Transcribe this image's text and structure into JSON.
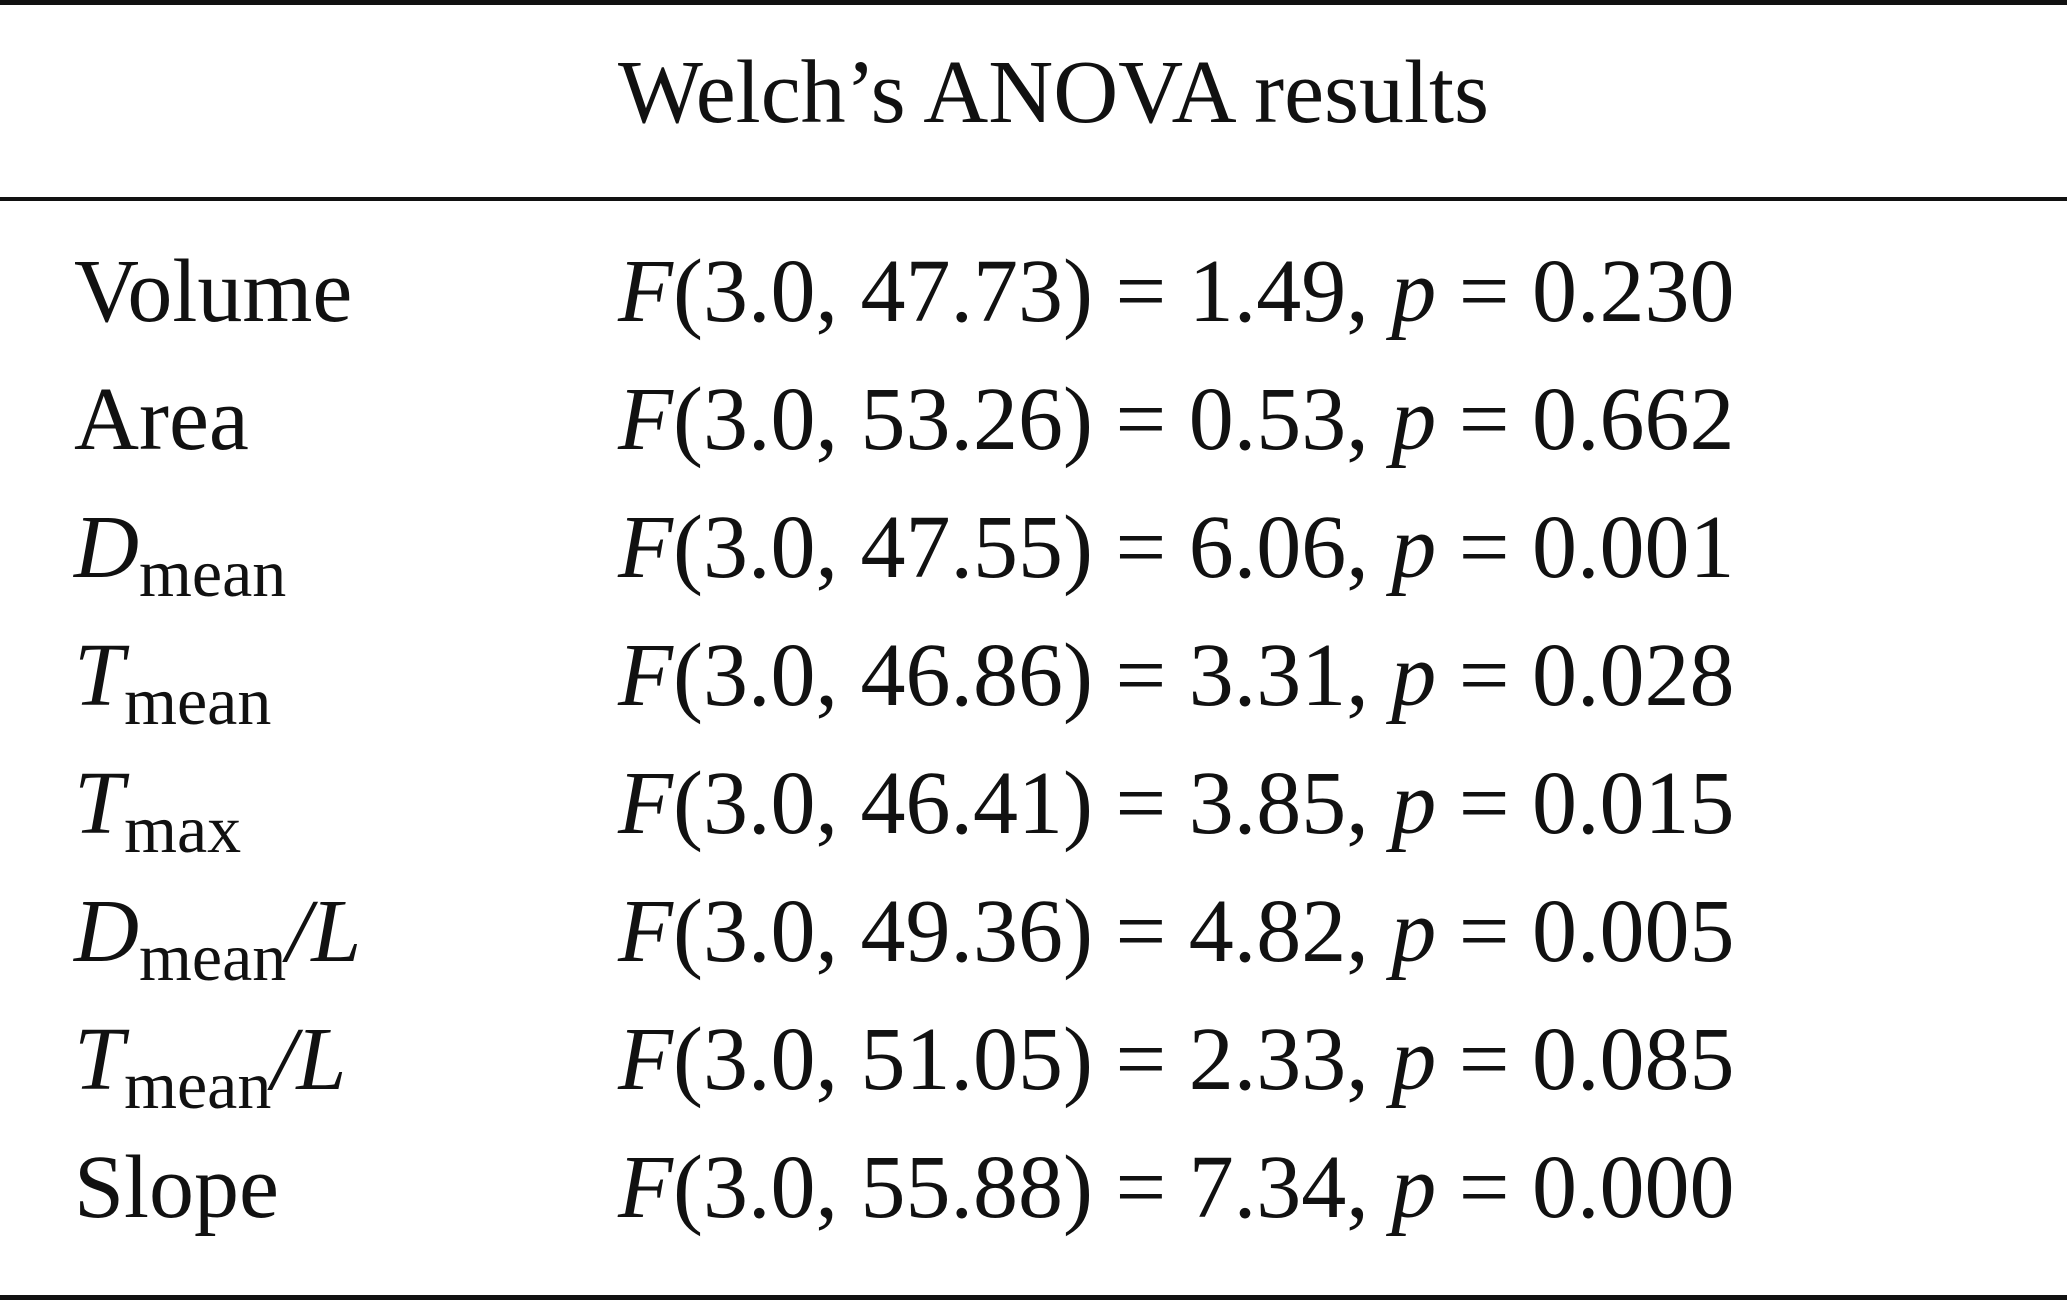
{
  "table": {
    "title": "Welch’s ANOVA results",
    "rows": [
      {
        "var_main": "Volume",
        "var_sub": "",
        "var_suffix": "",
        "var_italic": false,
        "f_symbol": "F",
        "args": "(3.0, 47.73)",
        "f_value": "1.49",
        "p_symbol": "p",
        "p_value": "0.230"
      },
      {
        "var_main": "Area",
        "var_sub": "",
        "var_suffix": "",
        "var_italic": false,
        "f_symbol": "F",
        "args": "(3.0, 53.26)",
        "f_value": "0.53",
        "p_symbol": "p",
        "p_value": "0.662"
      },
      {
        "var_main": "D",
        "var_sub": "mean",
        "var_suffix": "",
        "var_italic": true,
        "f_symbol": "F",
        "args": "(3.0, 47.55)",
        "f_value": "6.06",
        "p_symbol": "p",
        "p_value": "0.001"
      },
      {
        "var_main": "T",
        "var_sub": "mean",
        "var_suffix": "",
        "var_italic": true,
        "f_symbol": "F",
        "args": "(3.0, 46.86)",
        "f_value": "3.31",
        "p_symbol": "p",
        "p_value": "0.028"
      },
      {
        "var_main": "T",
        "var_sub": "max",
        "var_suffix": "",
        "var_italic": true,
        "f_symbol": "F",
        "args": "(3.0, 46.41)",
        "f_value": "3.85",
        "p_symbol": "p",
        "p_value": "0.015"
      },
      {
        "var_main": "D",
        "var_sub": "mean",
        "var_suffix": "/L",
        "var_italic": true,
        "f_symbol": "F",
        "args": "(3.0, 49.36)",
        "f_value": "4.82",
        "p_symbol": "p",
        "p_value": "0.005"
      },
      {
        "var_main": "T",
        "var_sub": "mean",
        "var_suffix": "/L",
        "var_italic": true,
        "f_symbol": "F",
        "args": "(3.0, 51.05)",
        "f_value": "2.33",
        "p_symbol": "p",
        "p_value": "0.085"
      },
      {
        "var_main": "Slope",
        "var_sub": "",
        "var_suffix": "",
        "var_italic": false,
        "f_symbol": "F",
        "args": "(3.0, 55.88)",
        "f_value": "7.34",
        "p_symbol": "p",
        "p_value": "0.000"
      }
    ]
  }
}
